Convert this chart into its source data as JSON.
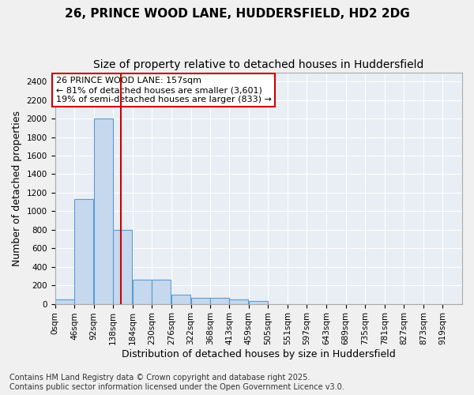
{
  "title_line1": "26, PRINCE WOOD LANE, HUDDERSFIELD, HD2 2DG",
  "title_line2": "Size of property relative to detached houses in Huddersfield",
  "xlabel": "Distribution of detached houses by size in Huddersfield",
  "ylabel": "Number of detached properties",
  "bar_color": "#c5d8ed",
  "bar_edge_color": "#5b9bd5",
  "background_color": "#e8eef4",
  "grid_color": "#ffffff",
  "annotation_box_color": "#cc0000",
  "annotation_text_line1": "26 PRINCE WOOD LANE: 157sqm",
  "annotation_text_line2": "← 81% of detached houses are smaller (3,601)",
  "annotation_text_line3": "19% of semi-detached houses are larger (833) →",
  "vline_x": 157,
  "vline_color": "#cc0000",
  "categories": [
    "0sqm",
    "46sqm",
    "92sqm",
    "138sqm",
    "184sqm",
    "230sqm",
    "276sqm",
    "322sqm",
    "368sqm",
    "413sqm",
    "459sqm",
    "505sqm",
    "551sqm",
    "597sqm",
    "643sqm",
    "689sqm",
    "735sqm",
    "781sqm",
    "827sqm",
    "873sqm",
    "919sqm"
  ],
  "bin_edges": [
    0,
    46,
    92,
    138,
    184,
    230,
    276,
    322,
    368,
    413,
    459,
    505,
    551,
    597,
    643,
    689,
    735,
    781,
    827,
    873,
    919,
    965
  ],
  "values": [
    50,
    1130,
    2000,
    800,
    260,
    260,
    100,
    65,
    65,
    50,
    30,
    0,
    0,
    0,
    0,
    0,
    0,
    0,
    0,
    0,
    0
  ],
  "ylim": [
    0,
    2500
  ],
  "yticks": [
    0,
    200,
    400,
    600,
    800,
    1000,
    1200,
    1400,
    1600,
    1800,
    2000,
    2200,
    2400
  ],
  "footnote_line1": "Contains HM Land Registry data © Crown copyright and database right 2025.",
  "footnote_line2": "Contains public sector information licensed under the Open Government Licence v3.0.",
  "title_fontsize": 11,
  "subtitle_fontsize": 10,
  "axis_label_fontsize": 9,
  "tick_fontsize": 7.5,
  "annotation_fontsize": 8,
  "footnote_fontsize": 7
}
